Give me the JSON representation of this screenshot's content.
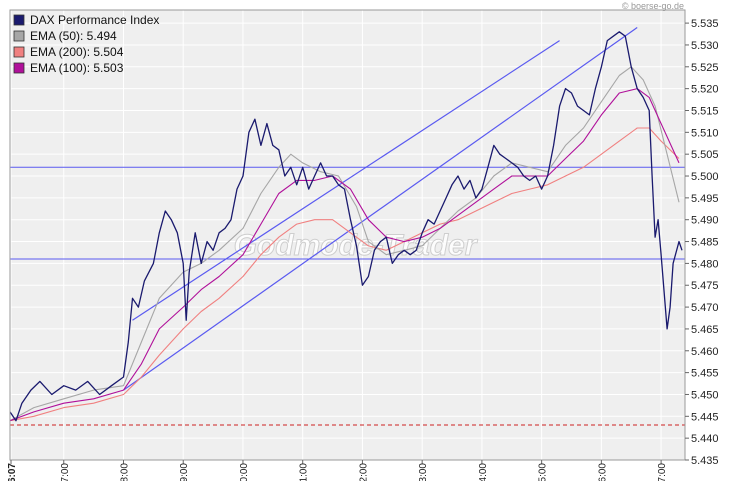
{
  "credit": "© boerse-go.de",
  "watermark": "Godmode-Trader",
  "colors": {
    "dax": "#1a1a6e",
    "ema50": "#a6a6a6",
    "ema200": "#f08080",
    "ema100": "#b0109a",
    "trendline": "#5a5af0",
    "hline": "#5a5af0",
    "dashed": "#cc2222",
    "plot_bg": "#efefef",
    "grid": "#ffffff"
  },
  "chart_data": {
    "type": "line",
    "title": "",
    "xlabel": "",
    "ylabel": "",
    "ylim": [
      5.435,
      5.538
    ],
    "xlim": [
      6.1,
      17.4
    ],
    "y_axis_side": "right",
    "grid": true,
    "legend_position": "top-left",
    "x_tick_values": [
      6.117,
      7,
      8,
      9,
      10,
      11,
      12,
      13,
      14,
      15,
      16,
      17
    ],
    "x_tick_labels": [
      "06:07",
      "07:00",
      "08:00",
      "09:00",
      "10:00",
      "11:00",
      "12:00",
      "13:00",
      "14:00",
      "15:00",
      "16:00",
      "17:00"
    ],
    "y_tick_values": [
      5.435,
      5.44,
      5.445,
      5.45,
      5.455,
      5.46,
      5.465,
      5.47,
      5.475,
      5.48,
      5.485,
      5.49,
      5.495,
      5.5,
      5.505,
      5.51,
      5.515,
      5.52,
      5.525,
      5.53,
      5.535
    ],
    "y_tick_labels": [
      "5.435",
      "5.440",
      "5.445",
      "5.450",
      "5.455",
      "5.460",
      "5.465",
      "5.470",
      "5.475",
      "5.480",
      "5.485",
      "5.490",
      "5.495",
      "5.500",
      "5.505",
      "5.510",
      "5.515",
      "5.520",
      "5.525",
      "5.530",
      "5.535"
    ],
    "series": [
      {
        "name": "DAX Performance Index",
        "legend_label": "DAX Performance Index",
        "color_key": "dax",
        "width": 1.3,
        "points": [
          [
            6.1,
            5.446
          ],
          [
            6.2,
            5.444
          ],
          [
            6.3,
            5.448
          ],
          [
            6.45,
            5.451
          ],
          [
            6.6,
            5.453
          ],
          [
            6.8,
            5.45
          ],
          [
            7.0,
            5.452
          ],
          [
            7.2,
            5.451
          ],
          [
            7.4,
            5.453
          ],
          [
            7.6,
            5.45
          ],
          [
            7.8,
            5.452
          ],
          [
            8.0,
            5.454
          ],
          [
            8.08,
            5.462
          ],
          [
            8.15,
            5.472
          ],
          [
            8.25,
            5.47
          ],
          [
            8.35,
            5.476
          ],
          [
            8.5,
            5.48
          ],
          [
            8.6,
            5.487
          ],
          [
            8.7,
            5.492
          ],
          [
            8.8,
            5.49
          ],
          [
            8.9,
            5.487
          ],
          [
            9.0,
            5.48
          ],
          [
            9.05,
            5.467
          ],
          [
            9.1,
            5.478
          ],
          [
            9.2,
            5.487
          ],
          [
            9.3,
            5.48
          ],
          [
            9.4,
            5.485
          ],
          [
            9.5,
            5.483
          ],
          [
            9.6,
            5.487
          ],
          [
            9.7,
            5.488
          ],
          [
            9.8,
            5.49
          ],
          [
            9.9,
            5.497
          ],
          [
            10.0,
            5.5
          ],
          [
            10.1,
            5.51
          ],
          [
            10.2,
            5.513
          ],
          [
            10.3,
            5.507
          ],
          [
            10.4,
            5.512
          ],
          [
            10.5,
            5.507
          ],
          [
            10.6,
            5.506
          ],
          [
            10.7,
            5.5
          ],
          [
            10.8,
            5.502
          ],
          [
            10.9,
            5.498
          ],
          [
            11.0,
            5.502
          ],
          [
            11.1,
            5.497
          ],
          [
            11.2,
            5.5
          ],
          [
            11.3,
            5.503
          ],
          [
            11.4,
            5.5
          ],
          [
            11.5,
            5.5
          ],
          [
            11.6,
            5.498
          ],
          [
            11.7,
            5.497
          ],
          [
            11.8,
            5.49
          ],
          [
            11.9,
            5.484
          ],
          [
            12.0,
            5.475
          ],
          [
            12.1,
            5.477
          ],
          [
            12.2,
            5.483
          ],
          [
            12.3,
            5.485
          ],
          [
            12.4,
            5.486
          ],
          [
            12.5,
            5.48
          ],
          [
            12.6,
            5.482
          ],
          [
            12.7,
            5.483
          ],
          [
            12.8,
            5.482
          ],
          [
            12.9,
            5.483
          ],
          [
            13.0,
            5.487
          ],
          [
            13.1,
            5.49
          ],
          [
            13.2,
            5.489
          ],
          [
            13.3,
            5.492
          ],
          [
            13.4,
            5.495
          ],
          [
            13.5,
            5.498
          ],
          [
            13.6,
            5.5
          ],
          [
            13.7,
            5.497
          ],
          [
            13.8,
            5.499
          ],
          [
            13.9,
            5.495
          ],
          [
            14.0,
            5.497
          ],
          [
            14.1,
            5.502
          ],
          [
            14.2,
            5.507
          ],
          [
            14.3,
            5.505
          ],
          [
            14.4,
            5.504
          ],
          [
            14.5,
            5.503
          ],
          [
            14.6,
            5.502
          ],
          [
            14.7,
            5.5
          ],
          [
            14.8,
            5.499
          ],
          [
            14.9,
            5.5
          ],
          [
            15.0,
            5.497
          ],
          [
            15.1,
            5.5
          ],
          [
            15.2,
            5.507
          ],
          [
            15.3,
            5.516
          ],
          [
            15.4,
            5.52
          ],
          [
            15.5,
            5.519
          ],
          [
            15.6,
            5.516
          ],
          [
            15.7,
            5.515
          ],
          [
            15.8,
            5.514
          ],
          [
            15.9,
            5.52
          ],
          [
            16.0,
            5.525
          ],
          [
            16.1,
            5.531
          ],
          [
            16.2,
            5.532
          ],
          [
            16.3,
            5.533
          ],
          [
            16.4,
            5.532
          ],
          [
            16.5,
            5.525
          ],
          [
            16.6,
            5.52
          ],
          [
            16.7,
            5.518
          ],
          [
            16.8,
            5.515
          ],
          [
            16.85,
            5.5
          ],
          [
            16.9,
            5.486
          ],
          [
            16.95,
            5.49
          ],
          [
            17.0,
            5.482
          ],
          [
            17.1,
            5.465
          ],
          [
            17.15,
            5.47
          ],
          [
            17.2,
            5.48
          ],
          [
            17.3,
            5.485
          ],
          [
            17.35,
            5.483
          ]
        ]
      },
      {
        "name": "EMA (50)",
        "legend_label": "EMA (50): 5.494",
        "color_key": "ema50",
        "width": 1.1,
        "points": [
          [
            6.1,
            5.444
          ],
          [
            6.5,
            5.447
          ],
          [
            7.0,
            5.449
          ],
          [
            7.5,
            5.451
          ],
          [
            8.0,
            5.452
          ],
          [
            8.3,
            5.462
          ],
          [
            8.6,
            5.472
          ],
          [
            9.0,
            5.478
          ],
          [
            9.3,
            5.48
          ],
          [
            9.6,
            5.483
          ],
          [
            10.0,
            5.488
          ],
          [
            10.3,
            5.496
          ],
          [
            10.6,
            5.502
          ],
          [
            10.8,
            5.505
          ],
          [
            11.0,
            5.503
          ],
          [
            11.3,
            5.501
          ],
          [
            11.6,
            5.5
          ],
          [
            11.9,
            5.493
          ],
          [
            12.1,
            5.485
          ],
          [
            12.4,
            5.482
          ],
          [
            12.7,
            5.483
          ],
          [
            13.0,
            5.484
          ],
          [
            13.3,
            5.488
          ],
          [
            13.6,
            5.492
          ],
          [
            13.9,
            5.495
          ],
          [
            14.2,
            5.5
          ],
          [
            14.5,
            5.503
          ],
          [
            14.8,
            5.502
          ],
          [
            15.1,
            5.501
          ],
          [
            15.4,
            5.507
          ],
          [
            15.7,
            5.511
          ],
          [
            16.0,
            5.517
          ],
          [
            16.3,
            5.523
          ],
          [
            16.5,
            5.525
          ],
          [
            16.7,
            5.522
          ],
          [
            16.9,
            5.516
          ],
          [
            17.1,
            5.505
          ],
          [
            17.3,
            5.494
          ]
        ]
      },
      {
        "name": "EMA (200)",
        "legend_label": "EMA (200): 5.504",
        "color_key": "ema200",
        "width": 1.1,
        "points": [
          [
            6.1,
            5.444
          ],
          [
            6.5,
            5.445
          ],
          [
            7.0,
            5.447
          ],
          [
            7.5,
            5.448
          ],
          [
            8.0,
            5.45
          ],
          [
            8.3,
            5.454
          ],
          [
            8.6,
            5.459
          ],
          [
            9.0,
            5.465
          ],
          [
            9.3,
            5.469
          ],
          [
            9.6,
            5.472
          ],
          [
            10.0,
            5.477
          ],
          [
            10.3,
            5.482
          ],
          [
            10.6,
            5.486
          ],
          [
            10.9,
            5.489
          ],
          [
            11.2,
            5.49
          ],
          [
            11.5,
            5.49
          ],
          [
            11.8,
            5.487
          ],
          [
            12.1,
            5.484
          ],
          [
            12.4,
            5.483
          ],
          [
            12.7,
            5.485
          ],
          [
            13.0,
            5.487
          ],
          [
            13.3,
            5.489
          ],
          [
            13.6,
            5.49
          ],
          [
            13.9,
            5.492
          ],
          [
            14.2,
            5.494
          ],
          [
            14.5,
            5.496
          ],
          [
            14.8,
            5.497
          ],
          [
            15.1,
            5.498
          ],
          [
            15.4,
            5.5
          ],
          [
            15.7,
            5.502
          ],
          [
            16.0,
            5.505
          ],
          [
            16.3,
            5.508
          ],
          [
            16.6,
            5.511
          ],
          [
            16.8,
            5.511
          ],
          [
            17.0,
            5.508
          ],
          [
            17.3,
            5.504
          ]
        ]
      },
      {
        "name": "EMA (100)",
        "legend_label": "EMA (100): 5.503",
        "color_key": "ema100",
        "width": 1.1,
        "points": [
          [
            6.1,
            5.444
          ],
          [
            6.5,
            5.446
          ],
          [
            7.0,
            5.448
          ],
          [
            7.5,
            5.449
          ],
          [
            8.0,
            5.451
          ],
          [
            8.3,
            5.457
          ],
          [
            8.6,
            5.465
          ],
          [
            9.0,
            5.47
          ],
          [
            9.3,
            5.474
          ],
          [
            9.6,
            5.477
          ],
          [
            10.0,
            5.482
          ],
          [
            10.3,
            5.489
          ],
          [
            10.6,
            5.496
          ],
          [
            10.9,
            5.499
          ],
          [
            11.2,
            5.499
          ],
          [
            11.5,
            5.5
          ],
          [
            11.8,
            5.497
          ],
          [
            12.1,
            5.49
          ],
          [
            12.4,
            5.486
          ],
          [
            12.7,
            5.485
          ],
          [
            13.0,
            5.486
          ],
          [
            13.3,
            5.488
          ],
          [
            13.6,
            5.491
          ],
          [
            13.9,
            5.494
          ],
          [
            14.2,
            5.497
          ],
          [
            14.5,
            5.5
          ],
          [
            14.8,
            5.5
          ],
          [
            15.1,
            5.5
          ],
          [
            15.4,
            5.504
          ],
          [
            15.7,
            5.508
          ],
          [
            16.0,
            5.514
          ],
          [
            16.3,
            5.519
          ],
          [
            16.6,
            5.52
          ],
          [
            16.8,
            5.518
          ],
          [
            17.0,
            5.512
          ],
          [
            17.3,
            5.503
          ]
        ]
      }
    ],
    "trendlines": [
      {
        "name": "upper-channel-line",
        "from": [
          8.15,
          5.467
        ],
        "to": [
          15.3,
          5.531
        ]
      },
      {
        "name": "lower-channel-line",
        "from": [
          8.0,
          5.451
        ],
        "to": [
          16.6,
          5.534
        ]
      }
    ],
    "hlines": [
      {
        "name": "resistance-line",
        "y": 5.502,
        "style": "solid",
        "color_key": "hline"
      },
      {
        "name": "support-line",
        "y": 5.481,
        "style": "solid",
        "color_key": "hline"
      },
      {
        "name": "previous-close-line",
        "y": 5.443,
        "style": "dashed",
        "color_key": "dashed"
      }
    ]
  }
}
